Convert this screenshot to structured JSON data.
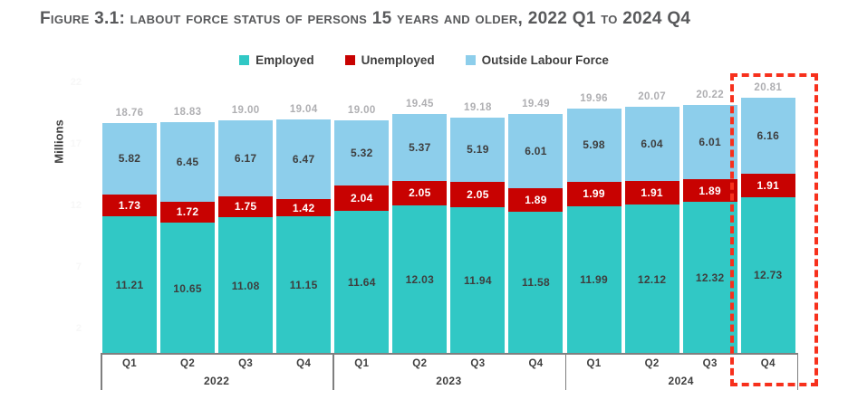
{
  "title": "Figure 3.1: labout force status of persons 15 years and older, 2022 Q1 to 2024 Q4",
  "chart_data": {
    "type": "bar",
    "stacked": true,
    "title": "Figure 3.1: labout force status of persons 15 years and older, 2022 Q1 to 2024 Q4",
    "ylabel": "Millions",
    "legend_position": "top",
    "grid": false,
    "x_groups": [
      {
        "year": "2022",
        "quarters": [
          "Q1",
          "Q2",
          "Q3",
          "Q4"
        ]
      },
      {
        "year": "2023",
        "quarters": [
          "Q1",
          "Q2",
          "Q3",
          "Q4"
        ]
      },
      {
        "year": "2024",
        "quarters": [
          "Q1",
          "Q2",
          "Q3",
          "Q4"
        ]
      }
    ],
    "series": [
      {
        "name": "Employed",
        "color": "#31C8C5",
        "label_color": "#3E3E3E",
        "values": [
          11.21,
          10.65,
          11.08,
          11.15,
          11.64,
          12.03,
          11.94,
          11.58,
          11.99,
          12.12,
          12.32,
          12.73
        ]
      },
      {
        "name": "Unemployed",
        "color": "#C80201",
        "label_color": "#FFFFFF",
        "values": [
          1.73,
          1.72,
          1.75,
          1.42,
          2.04,
          2.05,
          2.05,
          1.89,
          1.99,
          1.91,
          1.89,
          1.91
        ]
      },
      {
        "name": "Outside Labour Force",
        "color": "#8DCEEB",
        "label_color": "#3E3E3E",
        "values": [
          5.82,
          6.45,
          6.17,
          6.47,
          5.32,
          5.37,
          5.19,
          6.01,
          5.98,
          6.04,
          6.01,
          6.16
        ]
      }
    ],
    "totals": [
      "18.76",
      "18.83",
      "19.00",
      "19.04",
      "19.00",
      "19.45",
      "19.18",
      "19.49",
      "19.96",
      "20.07",
      "20.22",
      "20.81"
    ],
    "y_axis_ticks": [
      "22",
      "17",
      "12",
      "7",
      "2"
    ],
    "highlight": {
      "target": "2024 Q4",
      "style": "red dashed outline"
    }
  },
  "colors": {
    "title": "#58595B",
    "total_label": "#AFAFB2",
    "axis_line": "#7F7F7F",
    "axis_text": "#3F3F3F",
    "highlight_border": "#F7301C",
    "y_tick_text": "#F7F7F7"
  }
}
